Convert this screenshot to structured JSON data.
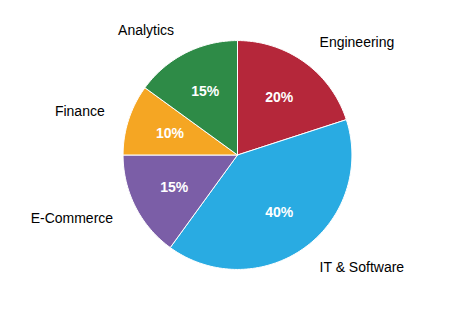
{
  "chart_data": {
    "type": "pie",
    "categories": [
      "Engineering",
      "IT & Software",
      "E-Commerce",
      "Finance",
      "Analytics"
    ],
    "values": [
      20,
      40,
      15,
      10,
      15
    ],
    "value_labels": [
      "20%",
      "40%",
      "15%",
      "10%",
      "15%"
    ],
    "colors": [
      "#b5273a",
      "#29abe2",
      "#7b5ea7",
      "#f5a623",
      "#2e8b47"
    ],
    "data_labels": true
  }
}
